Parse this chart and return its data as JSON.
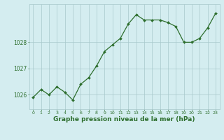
{
  "x": [
    0,
    1,
    2,
    3,
    4,
    5,
    6,
    7,
    8,
    9,
    10,
    11,
    12,
    13,
    14,
    15,
    16,
    17,
    18,
    19,
    20,
    21,
    22,
    23
  ],
  "y": [
    1025.9,
    1026.2,
    1026.0,
    1026.3,
    1026.1,
    1025.8,
    1026.4,
    1026.65,
    1027.1,
    1027.65,
    1027.9,
    1028.15,
    1028.7,
    1029.05,
    1028.85,
    1028.85,
    1028.85,
    1028.75,
    1028.6,
    1028.0,
    1028.0,
    1028.15,
    1028.55,
    1029.1
  ],
  "line_color": "#2d6e2d",
  "marker_color": "#2d6e2d",
  "bg_color": "#d4edf0",
  "grid_color": "#a8c8cc",
  "axis_label_color": "#2d6e2d",
  "tick_label_color": "#2d6e2d",
  "xlabel": "Graphe pression niveau de la mer (hPa)",
  "ylim_min": 1025.45,
  "ylim_max": 1029.45,
  "ytick_values": [
    1026,
    1027,
    1028
  ],
  "xtick_values": [
    0,
    1,
    2,
    3,
    4,
    5,
    6,
    7,
    8,
    9,
    10,
    11,
    12,
    13,
    14,
    15,
    16,
    17,
    18,
    19,
    20,
    21,
    22,
    23
  ]
}
